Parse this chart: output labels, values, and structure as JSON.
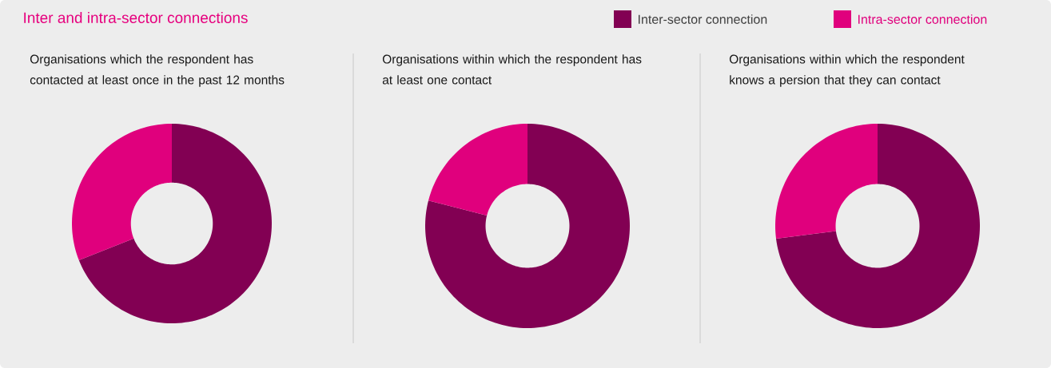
{
  "chart_data": [
    {
      "type": "donut",
      "title": "Inter and intra-sector connections",
      "subtitle": "Organisations which the respondent has contacted at least once in the past 12 months",
      "categories": [
        "Inter-sector connection",
        "Intra-sector connection"
      ],
      "values": [
        69,
        31
      ],
      "colors": [
        "#820053",
        "#e0007d"
      ],
      "legend": "top right"
    },
    {
      "type": "donut",
      "subtitle": "Organisations within which the respondent has at least one contact",
      "values": [
        79,
        21
      ],
      "colors": [
        "#820053",
        "#e0007d"
      ]
    },
    {
      "type": "donut",
      "subtitle": "Organisations within which the respondent knows a persion that they can contact",
      "values": [
        73,
        27
      ],
      "colors": [
        "#820053",
        "#e0007d"
      ]
    }
  ]
}
